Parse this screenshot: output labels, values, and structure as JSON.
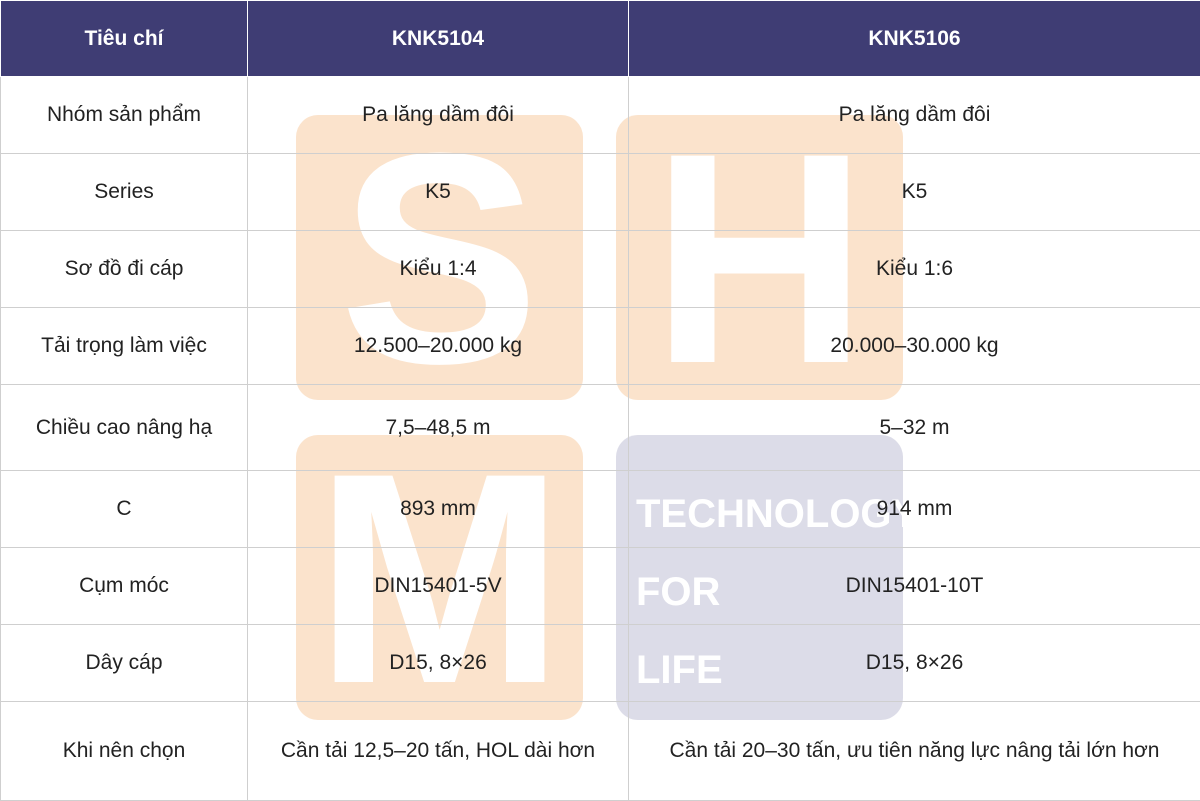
{
  "table": {
    "header": [
      "Tiêu chí",
      "KNK5104",
      "KNK5106"
    ],
    "rows": [
      [
        "Nhóm sản phẩm",
        "Pa lăng dầm đôi",
        "Pa lăng dầm đôi"
      ],
      [
        "Series",
        "K5",
        "K5"
      ],
      [
        "Sơ đồ đi cáp",
        "Kiểu 1:4",
        "Kiểu 1:6"
      ],
      [
        "Tải trọng làm việc",
        "12.500–20.000 kg",
        "20.000–30.000 kg"
      ],
      [
        "Chiều cao nâng hạ",
        "7,5–48,5 m",
        "5–32 m"
      ],
      [
        "C",
        "893 mm",
        "914 mm"
      ],
      [
        "Cụm móc",
        "DIN15401-5V",
        "DIN15401-10T"
      ],
      [
        "Dây cáp",
        "D15, 8×26",
        "D15, 8×26"
      ],
      [
        "Khi nên chọn",
        "Cần tải 12,5–20 tấn, HOL dài hơn",
        "Cần tải 20–30 tấn, ưu tiên năng lực nâng tải lớn hơn"
      ]
    ]
  },
  "watermark": {
    "letters": [
      "S",
      "H",
      "M"
    ],
    "tagline": [
      "TECHNOLOGY",
      "FOR",
      "LIFE"
    ]
  }
}
